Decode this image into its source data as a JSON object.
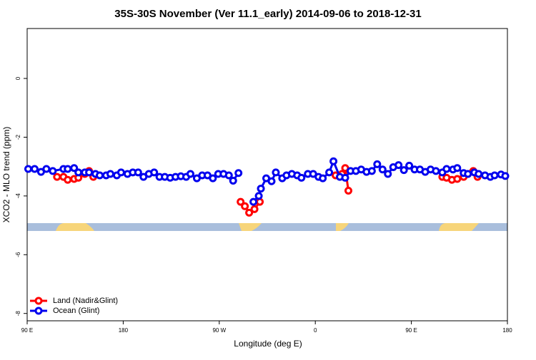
{
  "chart_data": {
    "type": "line",
    "title": "35S-30S November (Ver 11.1_early)   2014-09-06 to 2018-12-31",
    "x_label": "Longitude (deg E)",
    "y_label": "XCO2 - MLO trend (ppm)",
    "xlim": [
      90,
      540
    ],
    "ylim": [
      -8.25,
      1.7
    ],
    "xticks": [
      {
        "value": 90,
        "label": "90 E"
      },
      180,
      {
        "value": 270,
        "label": "90 W"
      },
      {
        "value": 360,
        "label": "0"
      },
      {
        "value": 450,
        "label": "90 E"
      },
      {
        "value": 540,
        "label": "180"
      }
    ],
    "yticks": [
      -8,
      -6,
      -4,
      -2,
      0
    ],
    "legend": "bottom-left",
    "series": [
      {
        "name": "Land (Nadir&Glint)",
        "color": "#ff0000",
        "x": [
          118,
          124,
          128,
          134,
          138,
          144,
          148,
          152,
          null,
          290,
          294,
          298,
          303,
          308,
          null,
          379,
          385,
          388,
          391,
          null,
          479,
          483,
          488,
          493,
          499,
          503,
          508,
          512
        ],
        "values": [
          -3.35,
          -3.35,
          -3.45,
          -3.42,
          -3.38,
          -3.25,
          -3.15,
          -3.35,
          null,
          -4.2,
          -4.35,
          -4.57,
          -4.45,
          -4.2,
          null,
          -3.3,
          -3.25,
          -3.05,
          -3.82,
          null,
          -3.35,
          -3.38,
          -3.45,
          -3.42,
          -3.35,
          -3.25,
          -3.15,
          -3.35
        ]
      },
      {
        "name": "Ocean (Glint)",
        "color": "#0000ee",
        "x": [
          91,
          97,
          103,
          108,
          114,
          124,
          128,
          134,
          138,
          144,
          148,
          154,
          158,
          164,
          168,
          174,
          178,
          184,
          189,
          194,
          199,
          204,
          209,
          214,
          219,
          224,
          229,
          234,
          239,
          243,
          249,
          254,
          259,
          264,
          269,
          274,
          279,
          283,
          288,
          null,
          302,
          307,
          309,
          314,
          319,
          323,
          329,
          333,
          338,
          343,
          347,
          353,
          358,
          363,
          367,
          373,
          377,
          383,
          388,
          393,
          398,
          403,
          408,
          413,
          418,
          423,
          428,
          433,
          438,
          443,
          448,
          453,
          458,
          463,
          468,
          473,
          479,
          483,
          489,
          493,
          499,
          503,
          509,
          513,
          519,
          524,
          528,
          534,
          538
        ],
        "values": [
          -3.08,
          -3.08,
          -3.18,
          -3.08,
          -3.15,
          -3.08,
          -3.08,
          -3.05,
          -3.2,
          -3.2,
          -3.2,
          -3.25,
          -3.3,
          -3.3,
          -3.25,
          -3.3,
          -3.2,
          -3.25,
          -3.2,
          -3.2,
          -3.35,
          -3.25,
          -3.2,
          -3.35,
          -3.35,
          -3.38,
          -3.35,
          -3.33,
          -3.35,
          -3.25,
          -3.4,
          -3.3,
          -3.3,
          -3.4,
          -3.25,
          -3.25,
          -3.3,
          -3.48,
          -3.22,
          null,
          -4.2,
          -4.0,
          -3.75,
          -3.4,
          -3.5,
          -3.2,
          -3.4,
          -3.3,
          -3.25,
          -3.3,
          -3.38,
          -3.25,
          -3.25,
          -3.35,
          -3.4,
          -3.2,
          -2.82,
          -3.35,
          -3.38,
          -3.15,
          -3.15,
          -3.1,
          -3.18,
          -3.15,
          -2.92,
          -3.1,
          -3.25,
          -3.02,
          -2.95,
          -3.12,
          -2.97,
          -3.1,
          -3.1,
          -3.18,
          -3.1,
          -3.15,
          -3.2,
          -3.08,
          -3.1,
          -3.05,
          -3.22,
          -3.25,
          -3.2,
          -3.25,
          -3.3,
          -3.35,
          -3.3,
          -3.27,
          -3.32
        ]
      }
    ]
  }
}
